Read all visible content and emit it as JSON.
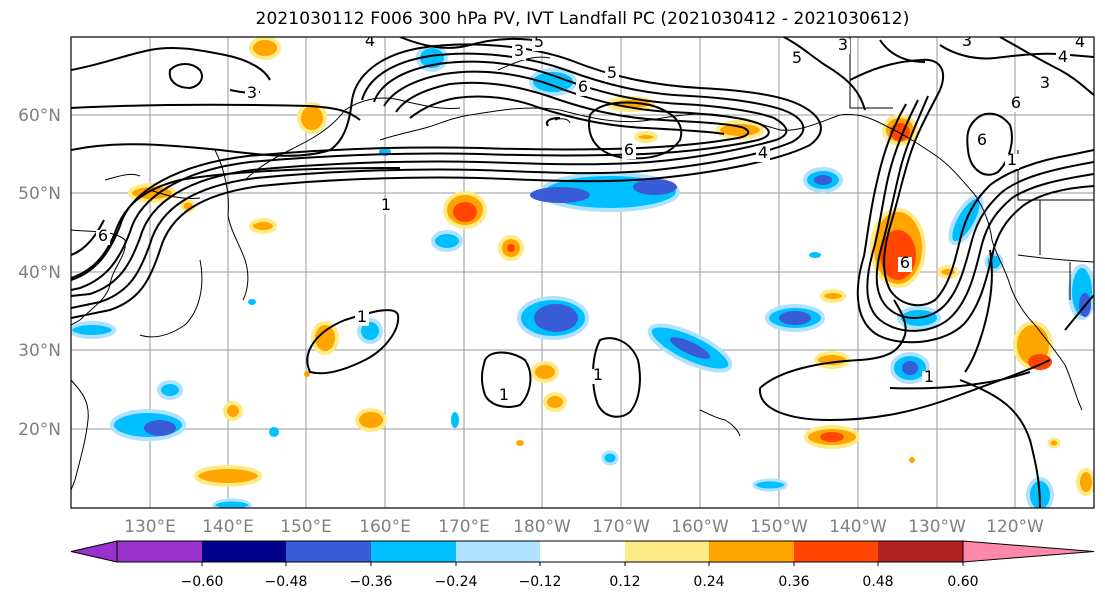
{
  "title": "2021030112 F006 300 hPa PV, IVT Landfall PC (2021030412 - 2021030612)",
  "map": {
    "projection": "PlateCarree",
    "region": "North Pacific",
    "lon_range": [
      "120°E",
      "110°W"
    ],
    "lat_range": [
      "10°N",
      "70°N"
    ],
    "gridlines": true,
    "coastlines": true,
    "longitude_ticks": [
      "130°E",
      "140°E",
      "150°E",
      "160°E",
      "170°E",
      "180°W",
      "170°W",
      "160°W",
      "150°W",
      "140°W",
      "130°W",
      "120°W"
    ],
    "latitude_ticks": [
      "60°N",
      "50°N",
      "40°N",
      "30°N",
      "20°N"
    ],
    "contour_color": "#000000",
    "contour_labels": [
      "4",
      "3",
      "3",
      "5",
      "5",
      "3",
      "5",
      "4",
      "3",
      "4",
      "3",
      "6",
      "6",
      "6",
      "4",
      "1",
      "6",
      "6",
      "6",
      "1",
      "1",
      "1",
      "1",
      "1"
    ]
  },
  "colorbar": {
    "extend": "both",
    "ticks": [
      "−0.60",
      "−0.48",
      "−0.36",
      "−0.24",
      "−0.12",
      "0.12",
      "0.24",
      "0.36",
      "0.48",
      "0.60"
    ],
    "colors": [
      "#9932cc",
      "#00008b",
      "#3a5bd6",
      "#00bfff",
      "#b0e2ff",
      "#ffffff",
      "#ffeb85",
      "#ffa500",
      "#ff4500",
      "#b22222",
      "#ff88aa"
    ]
  }
}
